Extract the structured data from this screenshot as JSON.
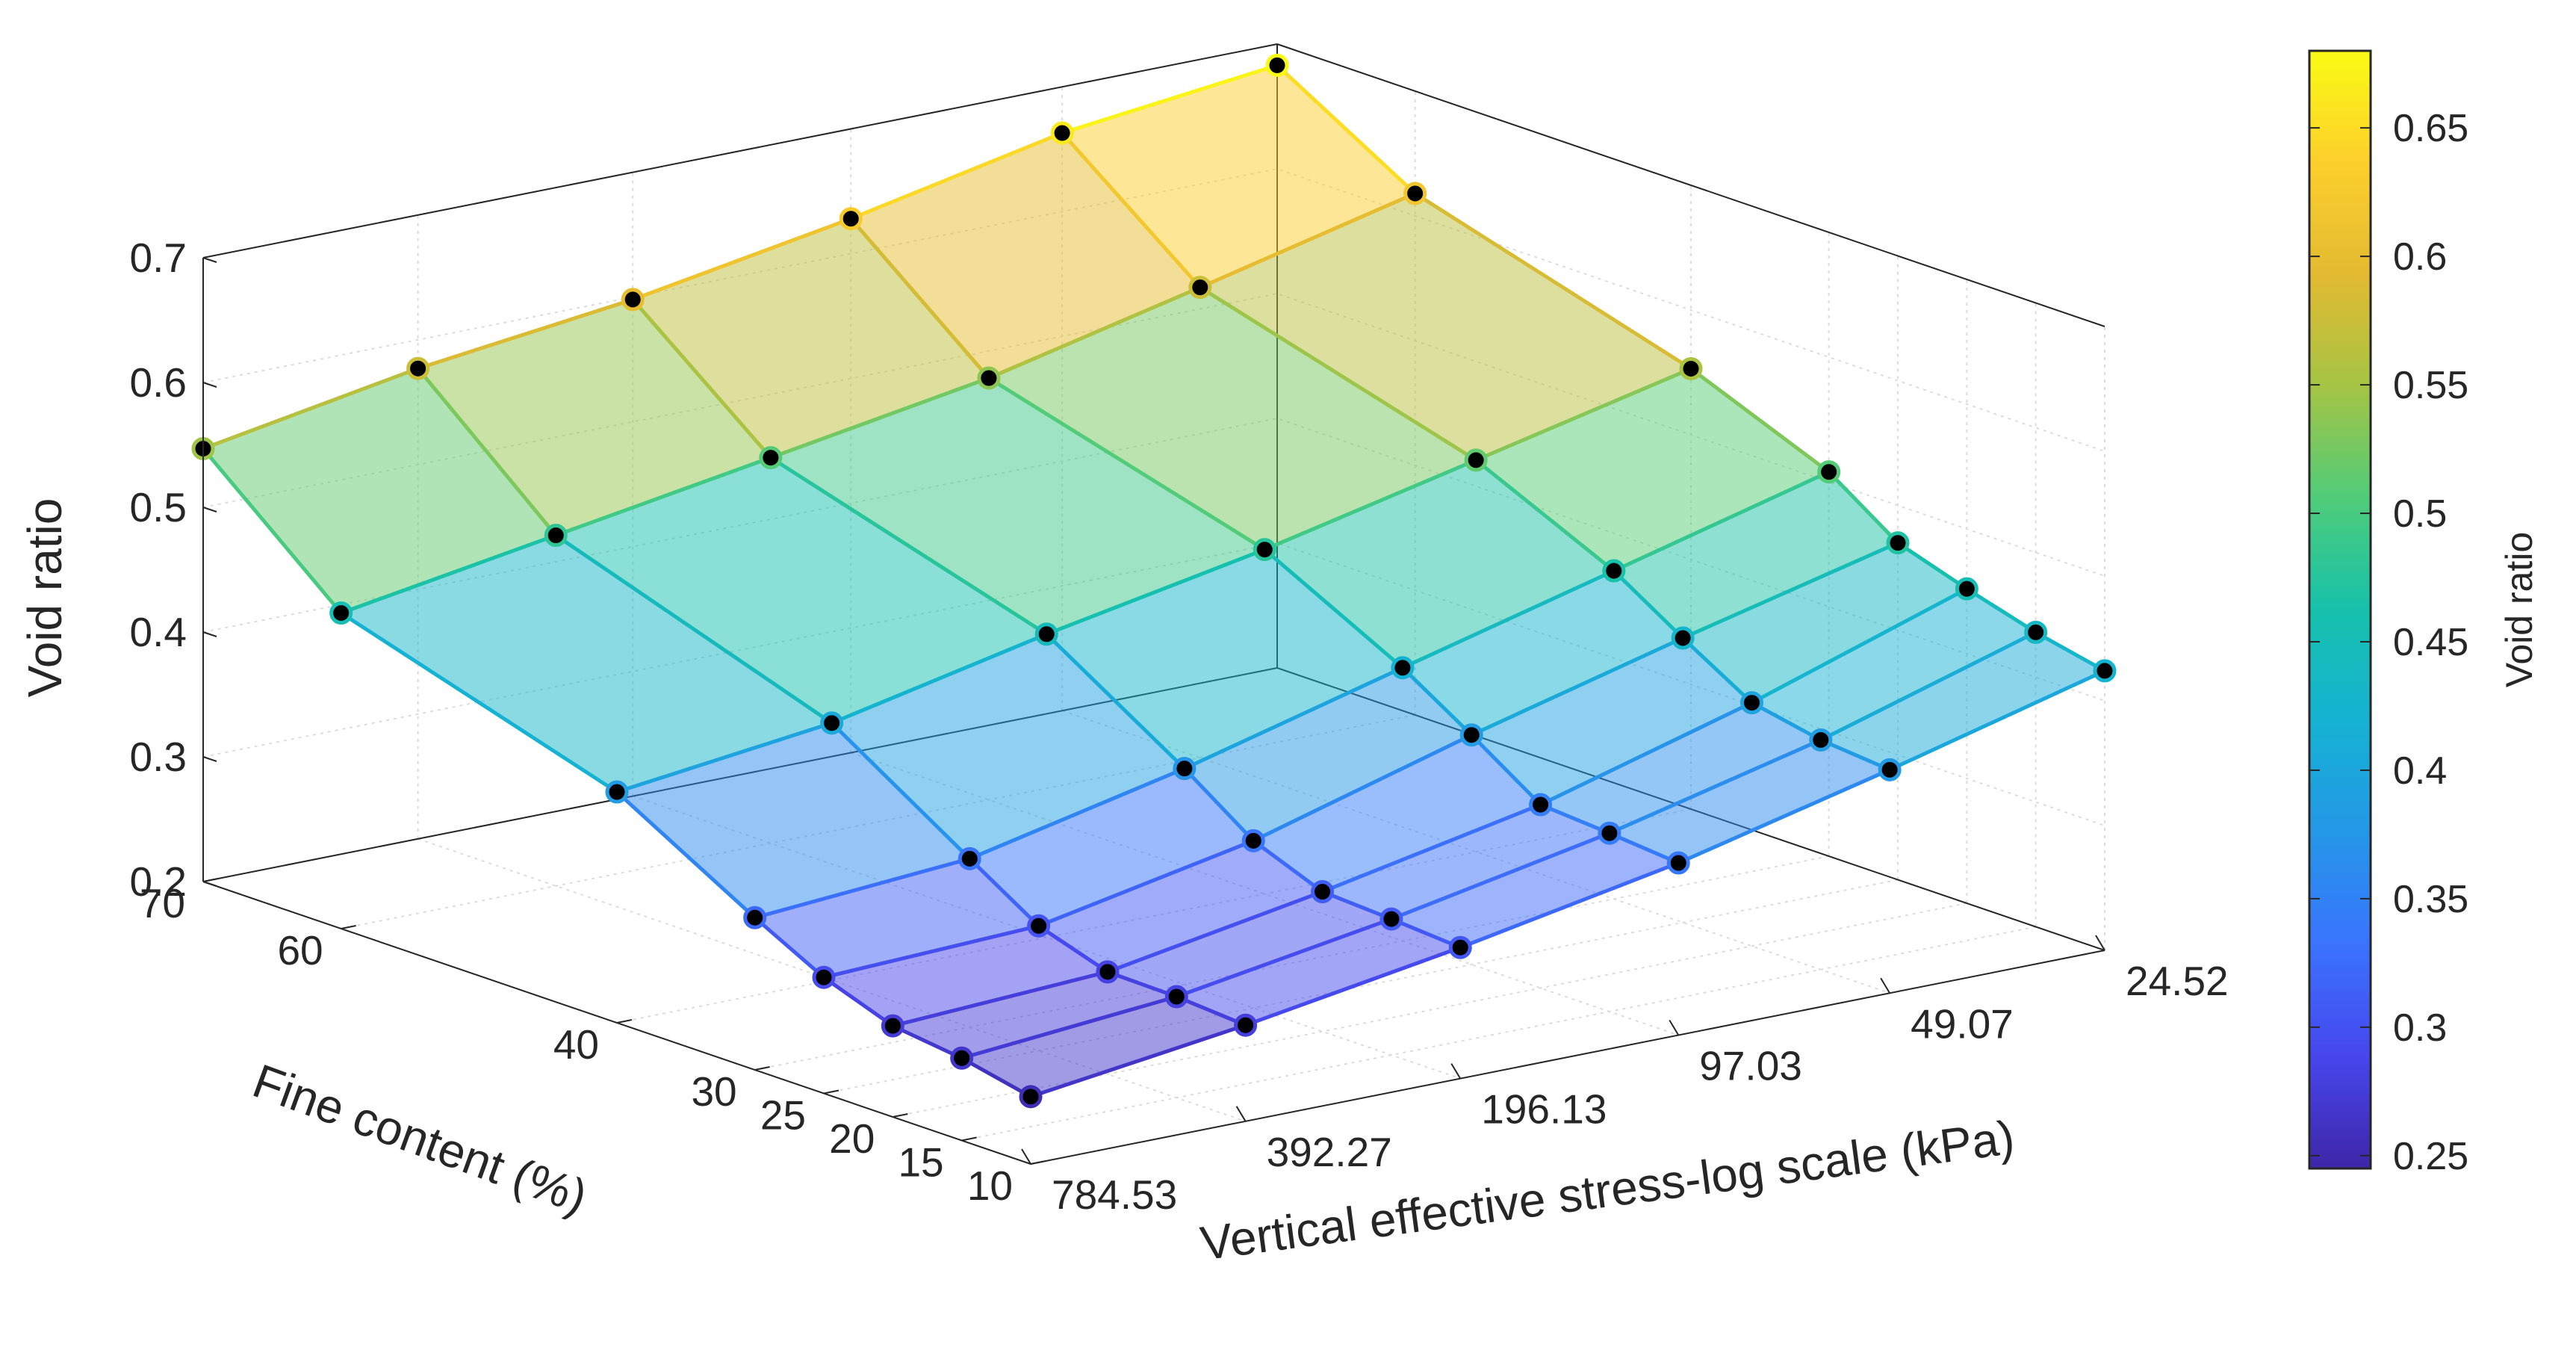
{
  "chart_data": {
    "type": "surface",
    "x_axis": {
      "label": "Vertical effective stress-log scale (kPa)",
      "ticks": [
        "784.53",
        "392.27",
        "196.13",
        "97.03",
        "49.07",
        "24.52"
      ],
      "values": [
        784.53,
        392.27,
        196.13,
        97.03,
        49.07,
        24.52
      ]
    },
    "y_axis": {
      "label": "Fine content (%)",
      "ticks": [
        "10",
        "15",
        "20",
        "25",
        "30",
        "40",
        "60",
        "70"
      ],
      "values": [
        10,
        15,
        20,
        25,
        30,
        40,
        60,
        70
      ]
    },
    "z_axis": {
      "label": "Void ratio",
      "ticks": [
        "0.2",
        "0.3",
        "0.4",
        "0.5",
        "0.6",
        "0.7"
      ],
      "range": [
        0.2,
        0.7
      ]
    },
    "z_values": [
      [
        0.254,
        0.277,
        0.305,
        0.338,
        0.379,
        0.424
      ],
      [
        0.266,
        0.281,
        0.309,
        0.343,
        0.384,
        0.436
      ],
      [
        0.273,
        0.282,
        0.312,
        0.347,
        0.395,
        0.452
      ],
      [
        0.293,
        0.3,
        0.334,
        0.384,
        0.428,
        0.47
      ],
      [
        0.322,
        0.335,
        0.373,
        0.419,
        0.463,
        0.508
      ],
      [
        0.385,
        0.406,
        0.443,
        0.476,
        0.514,
        0.553
      ],
      [
        0.453,
        0.481,
        0.509,
        0.538,
        0.577,
        0.618
      ],
      [
        0.547,
        0.577,
        0.598,
        0.628,
        0.663,
        0.683
      ]
    ],
    "colorbar": {
      "label": "Void ratio",
      "ticks": [
        "0.25",
        "0.3",
        "0.35",
        "0.4",
        "0.45",
        "0.5",
        "0.55",
        "0.6",
        "0.65"
      ],
      "range": [
        0.245,
        0.68
      ],
      "colormap": "parula"
    }
  }
}
